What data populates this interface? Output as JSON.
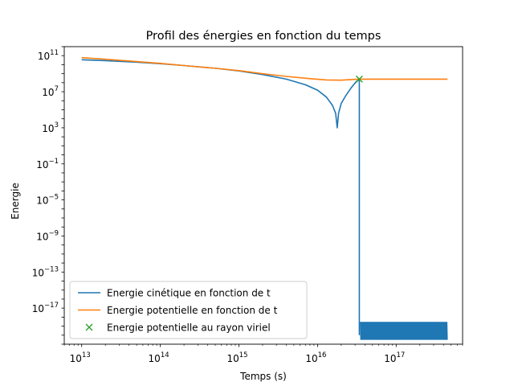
{
  "chart_data": {
    "type": "line",
    "title": "Profil des énergies en fonction du temps",
    "xlabel": "Temps (s)",
    "ylabel": "Energie",
    "xscale": "log",
    "yscale": "log",
    "xlim": [
      6000000000000.0,
      7e+17
    ],
    "ylim": [
      1e-21,
      1000000000000.0
    ],
    "grid": false,
    "legend_position": "lower-left",
    "x_ticks": [
      {
        "exp": 13
      },
      {
        "exp": 14
      },
      {
        "exp": 15
      },
      {
        "exp": 16
      },
      {
        "exp": 17
      }
    ],
    "y_ticks": [
      {
        "exp": 11
      },
      {
        "exp": 7
      },
      {
        "exp": 3
      },
      {
        "exp": -1
      },
      {
        "exp": -5
      },
      {
        "exp": -9
      },
      {
        "exp": -13
      },
      {
        "exp": -17
      }
    ],
    "series": [
      {
        "name": "Energie cinétique en fonction de t",
        "color": "#1f77b4",
        "marker": "line",
        "points": [
          [
            10000000000000.0,
            35000000000.0
          ],
          [
            20000000000000.0,
            28000000000.0
          ],
          [
            50000000000000.0,
            19000000000.0
          ],
          [
            100000000000000.0,
            13000000000.0
          ],
          [
            200000000000000.0,
            8000000000.0
          ],
          [
            500000000000000.0,
            4000000000.0
          ],
          [
            1000000000000000.0,
            2000000000.0
          ],
          [
            2000000000000000.0,
            800000000.0
          ],
          [
            4000000000000000.0,
            250000000.0
          ],
          [
            7000000000000000.0,
            60000000.0
          ],
          [
            1e+16,
            15000000.0
          ],
          [
            1.3e+16,
            2500000.0
          ],
          [
            1.55e+16,
            300000.0
          ],
          [
            1.7e+16,
            40000.0
          ],
          [
            1.78e+16,
            1000.0
          ],
          [
            1.85e+16,
            40000.0
          ],
          [
            2e+16,
            500000.0
          ],
          [
            2.3e+16,
            4000000.0
          ],
          [
            2.7e+16,
            30000000.0
          ],
          [
            3.1e+16,
            130000000.0
          ],
          [
            3.4e+16,
            250000000.0
          ],
          [
            3.4e+16,
            1e-20
          ]
        ],
        "noise_band": {
          "from": 3.5e+16,
          "to": 4.5e+17,
          "lower": 3e-21,
          "upper": 3e-19,
          "description": "oscillations à l'échelle la plus basse"
        }
      },
      {
        "name": "Energie potentielle en fonction de t",
        "color": "#ff7f0e",
        "marker": "line",
        "points": [
          [
            10000000000000.0,
            60000000000.0
          ],
          [
            20000000000000.0,
            40000000000.0
          ],
          [
            50000000000000.0,
            22000000000.0
          ],
          [
            100000000000000.0,
            14000000000.0
          ],
          [
            200000000000000.0,
            8000000000.0
          ],
          [
            500000000000000.0,
            4000000000.0
          ],
          [
            1000000000000000.0,
            2200000000.0
          ],
          [
            2000000000000000.0,
            1000000000.0
          ],
          [
            4000000000000000.0,
            500000000.0
          ],
          [
            8000000000000000.0,
            280000000.0
          ],
          [
            1.3e+16,
            200000000.0
          ],
          [
            2e+16,
            190000000.0
          ],
          [
            2.8e+16,
            230000000.0
          ],
          [
            3.4e+16,
            250000000.0
          ],
          [
            1e+17,
            250000000.0
          ],
          [
            4.5e+17,
            250000000.0
          ]
        ]
      },
      {
        "name": "Energie potentielle au rayon viriel",
        "color": "#2ca02c",
        "marker": "x",
        "points": [
          [
            3.4e+16,
            250000000.0
          ]
        ]
      }
    ]
  }
}
